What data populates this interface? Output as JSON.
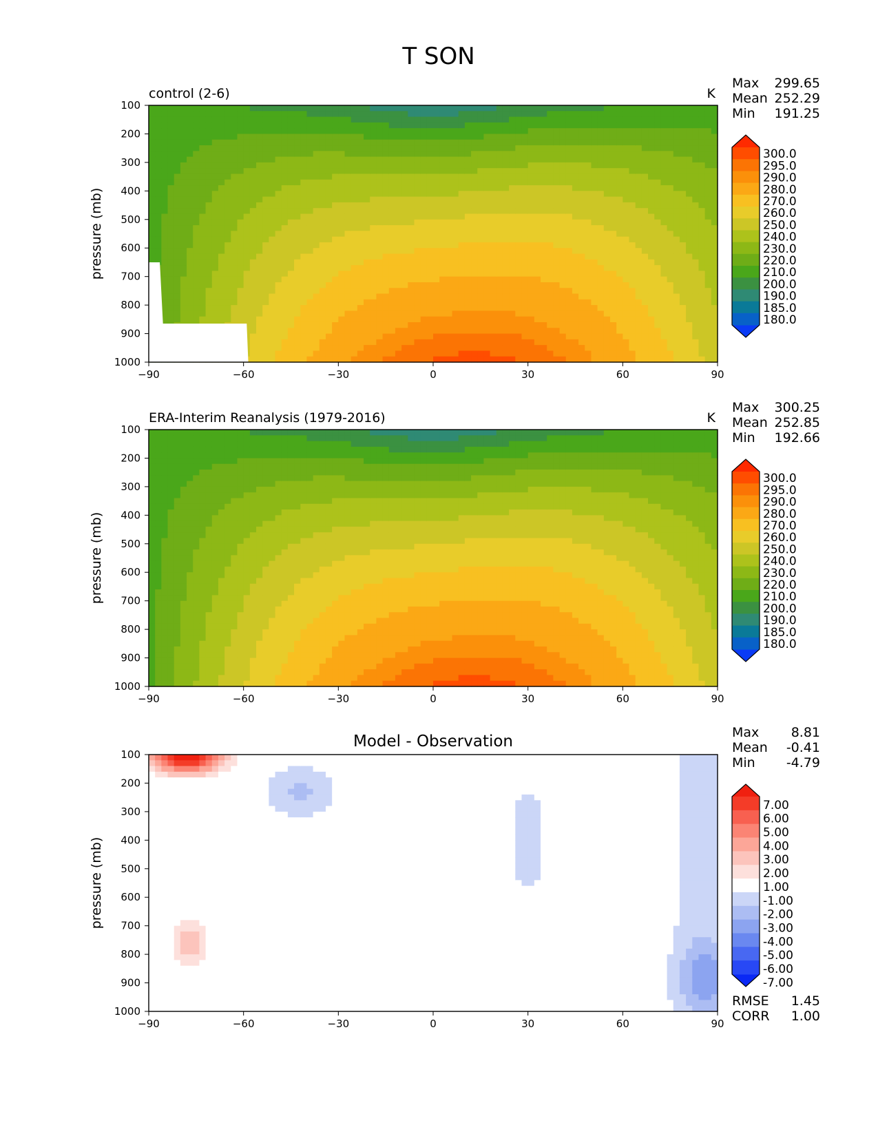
{
  "title": "T SON",
  "panel_shared": {
    "xticks": [
      -90,
      -60,
      -30,
      0,
      30,
      60,
      90
    ],
    "yticks": [
      100,
      200,
      300,
      400,
      500,
      600,
      700,
      800,
      900,
      1000
    ],
    "ylabel": "pressure (mb)",
    "xlim": [
      -90,
      90
    ],
    "ylim": [
      100,
      1000
    ],
    "stat_labels": {
      "max": "Max",
      "mean": "Mean",
      "min": "Min",
      "rmse": "RMSE",
      "corr": "CORR"
    }
  },
  "chart_data": [
    {
      "type": "contourf",
      "title": "control (2-6)",
      "units": "K",
      "xlabel": "",
      "ylabel": "pressure (mb)",
      "stats": {
        "max": "299.65",
        "mean": "252.29",
        "min": "191.25"
      },
      "levels": [
        "180.0",
        "185.0",
        "190.0",
        "200.0",
        "210.0",
        "220.0",
        "230.0",
        "240.0",
        "250.0",
        "260.0",
        "270.0",
        "280.0",
        "290.0",
        "295.0",
        "300.0"
      ],
      "colors": [
        "#0a3bf5",
        "#0861c8",
        "#0a7a98",
        "#2f8a74",
        "#3b9141",
        "#4aa71a",
        "#6fad17",
        "#8db816",
        "#adc21b",
        "#ccc626",
        "#e8cc2a",
        "#f8c021",
        "#fba815",
        "#fb900a",
        "#fb7404",
        "#ff4d00",
        "#ff2a00"
      ]
    },
    {
      "type": "contourf",
      "title": "ERA-Interim Reanalysis (1979-2016)",
      "units": "K",
      "xlabel": "",
      "ylabel": "pressure (mb)",
      "stats": {
        "max": "300.25",
        "mean": "252.85",
        "min": "192.66"
      },
      "levels": [
        "180.0",
        "185.0",
        "190.0",
        "200.0",
        "210.0",
        "220.0",
        "230.0",
        "240.0",
        "250.0",
        "260.0",
        "270.0",
        "280.0",
        "290.0",
        "295.0",
        "300.0"
      ],
      "colors": [
        "#0a3bf5",
        "#0861c8",
        "#0a7a98",
        "#2f8a74",
        "#3b9141",
        "#4aa71a",
        "#6fad17",
        "#8db816",
        "#adc21b",
        "#ccc626",
        "#e8cc2a",
        "#f8c021",
        "#fba815",
        "#fb900a",
        "#fb7404",
        "#ff4d00",
        "#ff2a00"
      ]
    },
    {
      "type": "contourf",
      "title": "Model - Observation",
      "units": "",
      "xlabel": "",
      "ylabel": "pressure (mb)",
      "stats": {
        "max": "8.81",
        "mean": "-0.41",
        "min": "-4.79",
        "rmse": "1.45",
        "corr": "1.00"
      },
      "levels": [
        "-7.00",
        "-6.00",
        "-5.00",
        "-4.00",
        "-3.00",
        "-2.00",
        "-1.00",
        "1.00",
        "2.00",
        "3.00",
        "4.00",
        "5.00",
        "6.00",
        "7.00"
      ],
      "colors": [
        "#0a28f5",
        "#2848f5",
        "#4868f2",
        "#6a88f0",
        "#8ca4f0",
        "#acbdf3",
        "#cbd6f7",
        "#ffffff",
        "#fde0dc",
        "#fcc4bc",
        "#fca698",
        "#fb8474",
        "#f86050",
        "#f43c28",
        "#f02010"
      ]
    }
  ]
}
